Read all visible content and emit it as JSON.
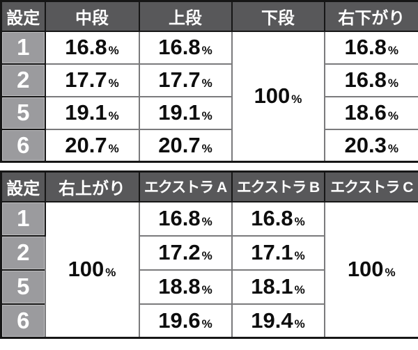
{
  "colors": {
    "header_bg": "#58585a",
    "setting_cell_bg": "#9b9b9e",
    "value_cell_bg": "#ffffff",
    "grid_dark": "#161616",
    "grid_light": "#7a7a7c",
    "header_text": "#ffffff",
    "value_text": "#0d0d0d"
  },
  "chart_data": [
    {
      "type": "table",
      "title": "",
      "unit": "%",
      "headers": [
        "設定",
        "中段",
        "上段",
        "下段",
        "右下がり"
      ],
      "settings": [
        "1",
        "2",
        "5",
        "6"
      ],
      "series": [
        {
          "name": "中段",
          "values": [
            "16.8",
            "17.7",
            "19.1",
            "20.7"
          ]
        },
        {
          "name": "上段",
          "values": [
            "16.8",
            "17.7",
            "19.1",
            "20.7"
          ]
        },
        {
          "name": "下段",
          "merged": true,
          "values": [
            "100"
          ]
        },
        {
          "name": "右下がり",
          "values": [
            "16.8",
            "16.8",
            "18.6",
            "20.3"
          ]
        }
      ]
    },
    {
      "type": "table",
      "title": "",
      "unit": "%",
      "headers": [
        "設定",
        "右上がり",
        "エクストラ A",
        "エクストラ B",
        "エクストラ C"
      ],
      "settings": [
        "1",
        "2",
        "5",
        "6"
      ],
      "series": [
        {
          "name": "右上がり",
          "merged": true,
          "values": [
            "100"
          ]
        },
        {
          "name": "エクストラ A",
          "values": [
            "16.8",
            "17.2",
            "18.8",
            "19.6"
          ]
        },
        {
          "name": "エクストラ B",
          "values": [
            "16.8",
            "17.1",
            "18.1",
            "19.4"
          ]
        },
        {
          "name": "エクストラ C",
          "merged": true,
          "values": [
            "100"
          ]
        }
      ]
    }
  ]
}
